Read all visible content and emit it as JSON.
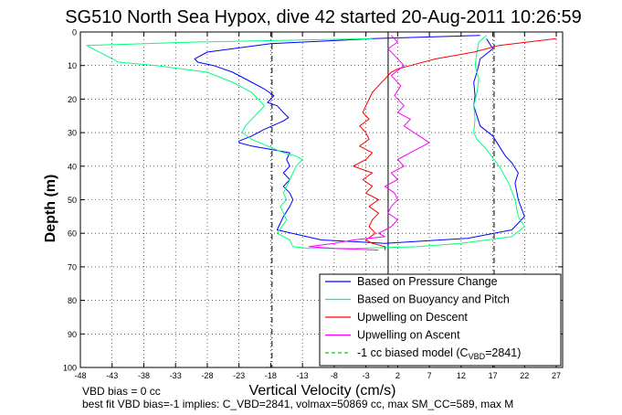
{
  "chart_data": {
    "type": "line",
    "title": "SG510 North Sea Hypox, dive 42 started 20-Aug-2011 10:26:59",
    "xlabel": "Vertical Velocity (cm/s)",
    "ylabel": "Depth (m)",
    "xlim": [
      -48,
      28
    ],
    "ylim": [
      0,
      100
    ],
    "y_reversed": true,
    "grid": true,
    "legend_position": "bottom-right",
    "xticks": [
      -48,
      -43,
      -38,
      -33,
      -28,
      -23,
      -18,
      -13,
      -8,
      -3,
      2,
      7,
      12,
      17,
      22,
      27
    ],
    "yticks": [
      0,
      10,
      20,
      30,
      40,
      50,
      60,
      70,
      80,
      90,
      100
    ],
    "vlines": [
      {
        "x": -17.8,
        "style": "dash-dot",
        "color": "#000000"
      },
      {
        "x": 0.5,
        "style": "solid",
        "color": "#000000"
      },
      {
        "x": 17.2,
        "style": "dash-dot",
        "color": "#000000"
      }
    ],
    "series": [
      {
        "name": "Based on Pressure Change",
        "color": "#0000ff",
        "x": [
          15,
          -2,
          -18,
          -28,
          -30,
          -29.5,
          -27,
          -24,
          -21,
          -19,
          -17.5,
          -18.5,
          -17,
          -16,
          -15.2,
          -16,
          -19,
          -21,
          -23,
          -23,
          -21,
          -18,
          -15,
          -15.5,
          -15,
          -16,
          -15,
          -16,
          -15,
          -14.5,
          -15,
          -16,
          -17,
          -10,
          0,
          13,
          20,
          22,
          21,
          20.5,
          21,
          20,
          19,
          18,
          17,
          15,
          14.5,
          14,
          14.2,
          14,
          14.5,
          15,
          17,
          16
        ],
        "y": [
          1,
          2,
          3.5,
          6,
          8,
          9,
          10,
          12,
          15,
          17,
          19,
          21,
          22,
          24,
          25.5,
          26.5,
          29,
          31,
          32.5,
          33,
          34,
          35,
          36,
          38,
          40,
          42,
          44,
          46,
          48,
          50,
          52,
          55,
          59,
          62,
          63,
          61.5,
          59,
          55,
          50,
          45,
          42,
          39,
          37,
          34,
          31,
          28,
          25,
          22,
          19,
          15,
          12,
          8,
          5,
          2
        ],
        "linestyle": "solid"
      },
      {
        "name": "Based on Buoyancy and Pitch",
        "color": "#00ff80",
        "x": [
          -2,
          -30,
          -47,
          -44,
          -42,
          -36,
          -28,
          -24,
          -21,
          -20,
          -19,
          -20,
          -21,
          -22,
          -22.5,
          -21,
          -18.5,
          -16,
          -14,
          -13,
          -14,
          -15,
          -16,
          -15.5,
          -16.5,
          -15.5,
          -17,
          -15,
          -14.5,
          -12,
          -5,
          5,
          12,
          20,
          22,
          21,
          20.5,
          19.5,
          18,
          16,
          14.5,
          14,
          14.2,
          14,
          14.5,
          14.8,
          14.2,
          14.5,
          14.8,
          16
        ],
        "y": [
          2,
          3,
          4,
          7,
          9,
          10,
          12,
          15,
          18,
          20,
          22,
          24,
          26,
          28,
          30,
          32,
          34,
          36,
          37,
          38,
          40,
          44,
          48,
          50,
          52,
          56,
          60,
          62,
          64,
          64.5,
          64.5,
          64,
          63,
          61,
          58,
          55,
          50,
          45,
          40,
          35,
          32,
          30,
          26,
          22,
          18,
          14,
          10,
          6,
          3,
          1
        ],
        "linestyle": "solid"
      },
      {
        "name": "Upwelling on Descent",
        "color": "#ff0000",
        "x": [
          27,
          18,
          14,
          8,
          4,
          2,
          1,
          0,
          -1,
          -2,
          -2.5,
          -3,
          -3.5,
          -2.5,
          -4,
          -3,
          -2.5,
          -4,
          -2,
          -3,
          -5,
          -2,
          -3.5,
          -2,
          -3,
          -1,
          -2.5,
          -1,
          -2,
          -2.5,
          -1.5,
          -3,
          -2,
          0,
          0
        ],
        "y": [
          2,
          4,
          6,
          8,
          10,
          11,
          12,
          14,
          16,
          18,
          20,
          22,
          24,
          26,
          28,
          30,
          32,
          34,
          36,
          38,
          40,
          42,
          44,
          46,
          48,
          50,
          52,
          54,
          56,
          58,
          60,
          62,
          63,
          64,
          65
        ],
        "linestyle": "solid"
      },
      {
        "name": "Upwelling on Ascent",
        "color": "#ff00ff",
        "x": [
          1,
          2,
          0.5,
          1.5,
          3,
          1,
          2.5,
          1.5,
          3,
          2,
          4,
          3,
          7,
          4,
          2,
          3,
          1,
          2,
          0,
          1.5,
          2,
          1,
          0.5,
          2,
          1,
          -1,
          0,
          -5,
          -8,
          -10,
          -12,
          -8,
          -4,
          -1
        ],
        "y": [
          1,
          3,
          5,
          7,
          10,
          13,
          16,
          19,
          22,
          24,
          26,
          28,
          33,
          36,
          38,
          40,
          42,
          44,
          46,
          48,
          50,
          52,
          54,
          56,
          58,
          60,
          61,
          62,
          63,
          63.5,
          64,
          64.5,
          64.8,
          65
        ],
        "linestyle": "solid"
      },
      {
        "name": "-1 cc biased model (C_VBD=2841)",
        "legend_main": "-1 cc biased model (C",
        "legend_sub": "VBD",
        "legend_tail": "=2841)",
        "color": "#00cc00",
        "x": [],
        "y": [],
        "linestyle": "dashed"
      }
    ],
    "footnotes": [
      "VBD bias = 0 cc",
      "best fit VBD bias=-1 implies: C_VBD=2841, volmax=50869 cc, max SM_CC=589, max M"
    ]
  }
}
